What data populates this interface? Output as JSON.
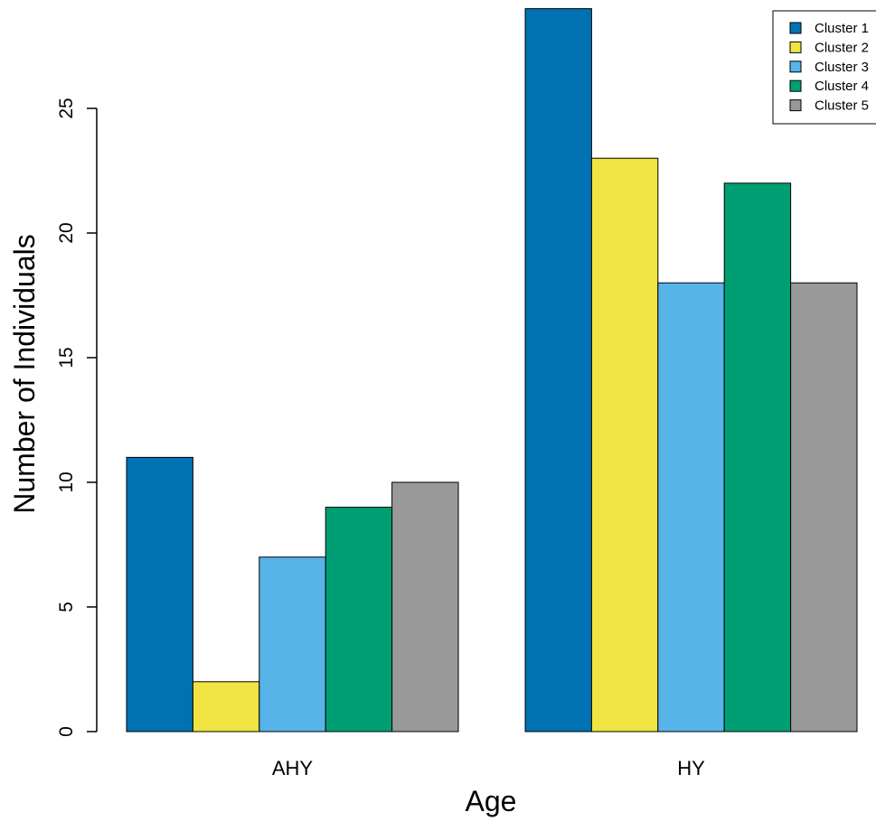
{
  "chart_data": {
    "type": "bar",
    "title": "",
    "xlabel": "Age",
    "ylabel": "Number of Individuals",
    "categories": [
      "AHY",
      "HY"
    ],
    "series": [
      {
        "name": "Cluster 1",
        "color": "#0072b2",
        "values": [
          11,
          29
        ]
      },
      {
        "name": "Cluster 2",
        "color": "#f0e442",
        "values": [
          2,
          23
        ]
      },
      {
        "name": "Cluster 3",
        "color": "#56b4e9",
        "values": [
          7,
          18
        ]
      },
      {
        "name": "Cluster 4",
        "color": "#009e73",
        "values": [
          9,
          22
        ]
      },
      {
        "name": "Cluster 5",
        "color": "#999999",
        "values": [
          10,
          18
        ]
      }
    ],
    "ylim": [
      0,
      29
    ],
    "yticks": [
      "0",
      "5",
      "10",
      "15",
      "20",
      "25"
    ],
    "grid": false,
    "legend_position": "top-right"
  }
}
